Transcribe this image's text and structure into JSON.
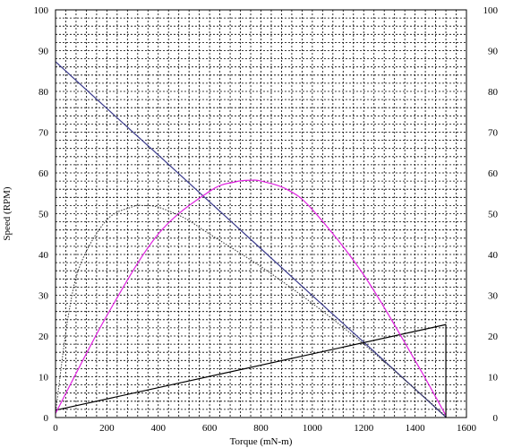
{
  "chart_data": {
    "type": "line",
    "title": "",
    "xlabel": "Torque (mN-m)",
    "ylabel": "Speed (RPM)",
    "xlim": [
      0,
      1600
    ],
    "ylim": [
      0,
      100
    ],
    "x_ticks": [
      0,
      200,
      400,
      600,
      800,
      1000,
      1200,
      1400,
      1600
    ],
    "y_ticks": [
      0,
      10,
      20,
      30,
      40,
      50,
      60,
      70,
      80,
      90,
      100
    ],
    "grid": true,
    "grid_style": "dashed",
    "minor_grid_divisions": {
      "x": 5,
      "y": 5
    },
    "right_axis_labels": true,
    "legend": "none",
    "series": [
      {
        "color": "#3a3a8c",
        "style": "solid",
        "x": [
          0,
          200,
          400,
          600,
          800,
          1000,
          1200,
          1400,
          1520
        ],
        "values": [
          87.3,
          75.8,
          64.4,
          52.9,
          41.4,
          29.9,
          18.5,
          7.0,
          0.1
        ]
      },
      {
        "color": "#000000",
        "style": "solid",
        "x": [
          0,
          1520
        ],
        "values": [
          1.8,
          22.8
        ]
      },
      {
        "color": "#e020e0",
        "style": "solid",
        "x": [
          0,
          200,
          400,
          600,
          700,
          760,
          800,
          900,
          1000,
          1200,
          1400,
          1520
        ],
        "values": [
          1,
          25,
          45,
          55.5,
          57.8,
          58.2,
          58,
          56,
          51,
          35,
          14,
          0.5
        ]
      },
      {
        "color": "#333333",
        "style": "dotted",
        "x": [
          0,
          50,
          100,
          200,
          300,
          340,
          400,
          500,
          600,
          800,
          1000,
          1200,
          1400,
          1520
        ],
        "values": [
          1,
          25,
          38,
          48.5,
          51.7,
          52,
          51.6,
          49,
          45,
          37,
          28,
          18,
          7,
          0.3
        ]
      }
    ]
  }
}
